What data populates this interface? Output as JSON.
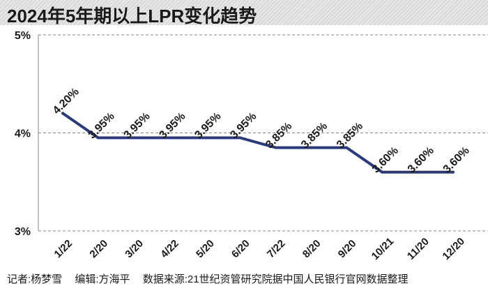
{
  "title": "2024年5年期以上LPR变化趋势",
  "colors": {
    "line": "#2b3a80",
    "grid": "#888888",
    "text": "#1a1a1a"
  },
  "footer": {
    "reporter": "记者:杨梦雪",
    "editor": "编辑:方海平",
    "source": "数据来源:21世纪资管研究院据中国人民银行官网数据整理"
  },
  "chart_data": {
    "type": "line",
    "title": "2024年5年期以上LPR变化趋势",
    "xlabel": "",
    "ylabel": "",
    "grid": true,
    "ylim": [
      3,
      5
    ],
    "yticks": [
      {
        "value": 5,
        "label": "5%"
      },
      {
        "value": 4,
        "label": "4%"
      },
      {
        "value": 3,
        "label": "3%"
      }
    ],
    "categories": [
      "1/22",
      "2/20",
      "3/20",
      "4/22",
      "5/20",
      "6/20",
      "7/22",
      "8/20",
      "9/20",
      "10/21",
      "11/20",
      "12/20"
    ],
    "series": [
      {
        "name": "5年期以上LPR",
        "values": [
          4.2,
          3.95,
          3.95,
          3.95,
          3.95,
          3.95,
          3.85,
          3.85,
          3.85,
          3.6,
          3.6,
          3.6
        ],
        "labels": [
          "4.20%",
          "3.95%",
          "3.95%",
          "3.95%",
          "3.95%",
          "3.95%",
          "3.85%",
          "3.85%",
          "3.85%",
          "3.60%",
          "3.60%",
          "3.60%"
        ]
      }
    ]
  }
}
